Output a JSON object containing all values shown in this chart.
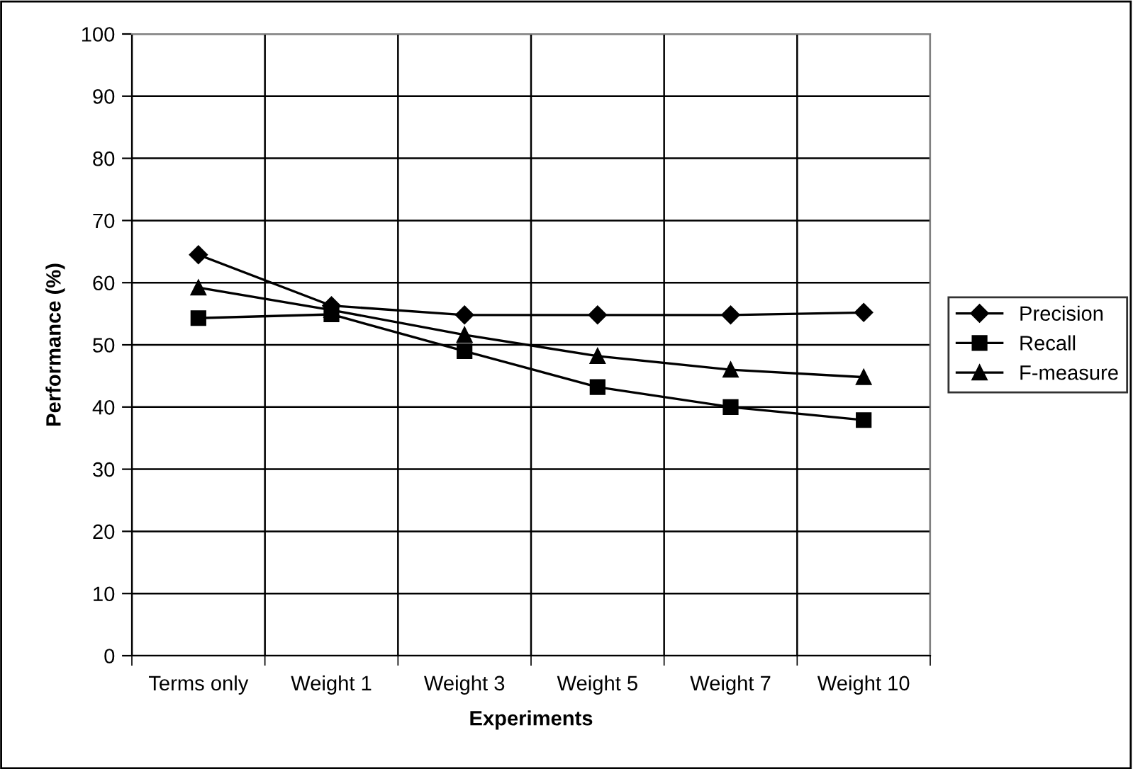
{
  "chart_data": {
    "type": "line",
    "xlabel": "Experiments",
    "ylabel": "Performance (%)",
    "categories": [
      "Terms only",
      "Weight 1",
      "Weight 3",
      "Weight 5",
      "Weight 7",
      "Weight 10"
    ],
    "series": [
      {
        "name": "Precision",
        "color": "#000000",
        "marker": "diamond",
        "values": [
          64.5,
          56.3,
          54.8,
          54.8,
          54.8,
          55.2
        ]
      },
      {
        "name": "Recall",
        "color": "#000000",
        "marker": "square",
        "values": [
          54.3,
          54.9,
          49,
          43.2,
          40,
          37.9
        ]
      },
      {
        "name": "F-measure",
        "color": "#000000",
        "marker": "triangle",
        "values": [
          59.2,
          55.6,
          51.6,
          48.2,
          46,
          44.8
        ]
      }
    ],
    "ylim": [
      0,
      100
    ],
    "yticks": [
      0,
      10,
      20,
      30,
      40,
      50,
      60,
      70,
      80,
      90,
      100
    ],
    "grid": true,
    "legend": "right",
    "line_style": "solid"
  }
}
